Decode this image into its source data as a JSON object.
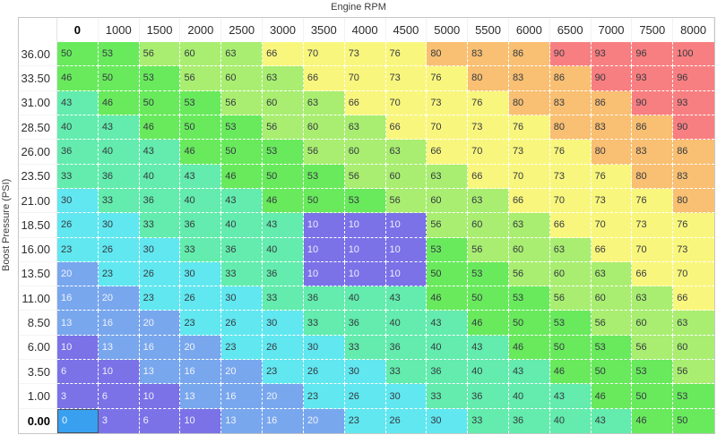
{
  "title": "Engine RPM",
  "y_axis_label": "Boost Pressure (PSI)",
  "table": {
    "col_headers": [
      "0",
      "1000",
      "1500",
      "2000",
      "2500",
      "3000",
      "3500",
      "4000",
      "4500",
      "5000",
      "5500",
      "6000",
      "6500",
      "7000",
      "7500",
      "8000"
    ],
    "row_headers": [
      "36.00",
      "33.50",
      "31.00",
      "28.50",
      "26.00",
      "23.50",
      "21.00",
      "18.50",
      "16.00",
      "13.50",
      "11.00",
      "8.50",
      "6.00",
      "3.50",
      "1.00",
      "0.00"
    ],
    "values": [
      [
        50,
        53,
        56,
        60,
        63,
        66,
        70,
        73,
        76,
        80,
        83,
        86,
        90,
        93,
        96,
        100
      ],
      [
        46,
        50,
        53,
        56,
        60,
        63,
        66,
        70,
        73,
        76,
        80,
        83,
        86,
        90,
        93,
        96
      ],
      [
        43,
        46,
        50,
        53,
        56,
        60,
        63,
        66,
        70,
        73,
        76,
        80,
        83,
        86,
        90,
        93
      ],
      [
        40,
        43,
        46,
        50,
        53,
        56,
        60,
        63,
        66,
        70,
        73,
        76,
        80,
        83,
        86,
        90
      ],
      [
        36,
        40,
        43,
        46,
        50,
        53,
        56,
        60,
        63,
        66,
        70,
        73,
        76,
        80,
        83,
        86
      ],
      [
        33,
        36,
        40,
        43,
        46,
        50,
        53,
        56,
        60,
        63,
        66,
        70,
        73,
        76,
        80,
        83
      ],
      [
        30,
        33,
        36,
        40,
        43,
        46,
        50,
        53,
        56,
        60,
        63,
        66,
        70,
        73,
        76,
        80
      ],
      [
        26,
        30,
        33,
        36,
        40,
        43,
        10,
        10,
        10,
        56,
        60,
        63,
        66,
        70,
        73,
        76
      ],
      [
        23,
        26,
        30,
        33,
        36,
        40,
        10,
        10,
        10,
        53,
        56,
        60,
        63,
        66,
        70,
        73
      ],
      [
        20,
        23,
        26,
        30,
        33,
        36,
        10,
        10,
        10,
        50,
        53,
        56,
        60,
        63,
        66,
        70
      ],
      [
        16,
        20,
        23,
        26,
        30,
        33,
        36,
        40,
        43,
        46,
        50,
        53,
        56,
        60,
        63,
        66
      ],
      [
        13,
        16,
        20,
        23,
        26,
        30,
        33,
        36,
        40,
        43,
        46,
        50,
        53,
        56,
        60,
        63
      ],
      [
        10,
        13,
        16,
        20,
        23,
        26,
        30,
        33,
        36,
        40,
        43,
        46,
        50,
        53,
        56,
        60
      ],
      [
        6,
        10,
        13,
        16,
        20,
        23,
        26,
        30,
        33,
        36,
        40,
        43,
        46,
        50,
        53,
        56
      ],
      [
        3,
        6,
        10,
        13,
        16,
        20,
        23,
        26,
        30,
        33,
        36,
        40,
        43,
        46,
        50,
        53
      ],
      [
        0,
        3,
        6,
        10,
        13,
        16,
        20,
        23,
        26,
        30,
        33,
        36,
        40,
        43,
        46,
        50
      ]
    ],
    "selected_cell": {
      "row_header": "0.00",
      "col_header": "0",
      "row_index": 15,
      "col_index": 0,
      "value": 0
    }
  },
  "colormap": {
    "bins": [
      {
        "range": "0-10",
        "max": 10,
        "bg": "#7b72e8",
        "fg": "#eef0fb"
      },
      {
        "range": "11-21",
        "max": 21,
        "bg": "#79a7ee",
        "fg": "#eef3fb"
      },
      {
        "range": "22-32",
        "max": 32,
        "bg": "#61e7f0",
        "fg": "#353a40"
      },
      {
        "range": "33-44",
        "max": 44,
        "bg": "#63ecad",
        "fg": "#353a40"
      },
      {
        "range": "45-54",
        "max": 54,
        "bg": "#69ea5d",
        "fg": "#353a40"
      },
      {
        "range": "55-65",
        "max": 65,
        "bg": "#a9ee71",
        "fg": "#353a40"
      },
      {
        "range": "66-77",
        "max": 77,
        "bg": "#f9f67d",
        "fg": "#353a40"
      },
      {
        "range": "78-88",
        "max": 88,
        "bg": "#f9bf72",
        "fg": "#353a40"
      },
      {
        "range": "89-100",
        "max": 100,
        "bg": "#f87f81",
        "fg": "#353a40"
      }
    ],
    "selected": {
      "bg": "#38a0ef",
      "fg": "#f2f6fb",
      "border": "#46525e"
    },
    "grid_dash": "#ffffff",
    "table_border": "#c6c6c6"
  }
}
